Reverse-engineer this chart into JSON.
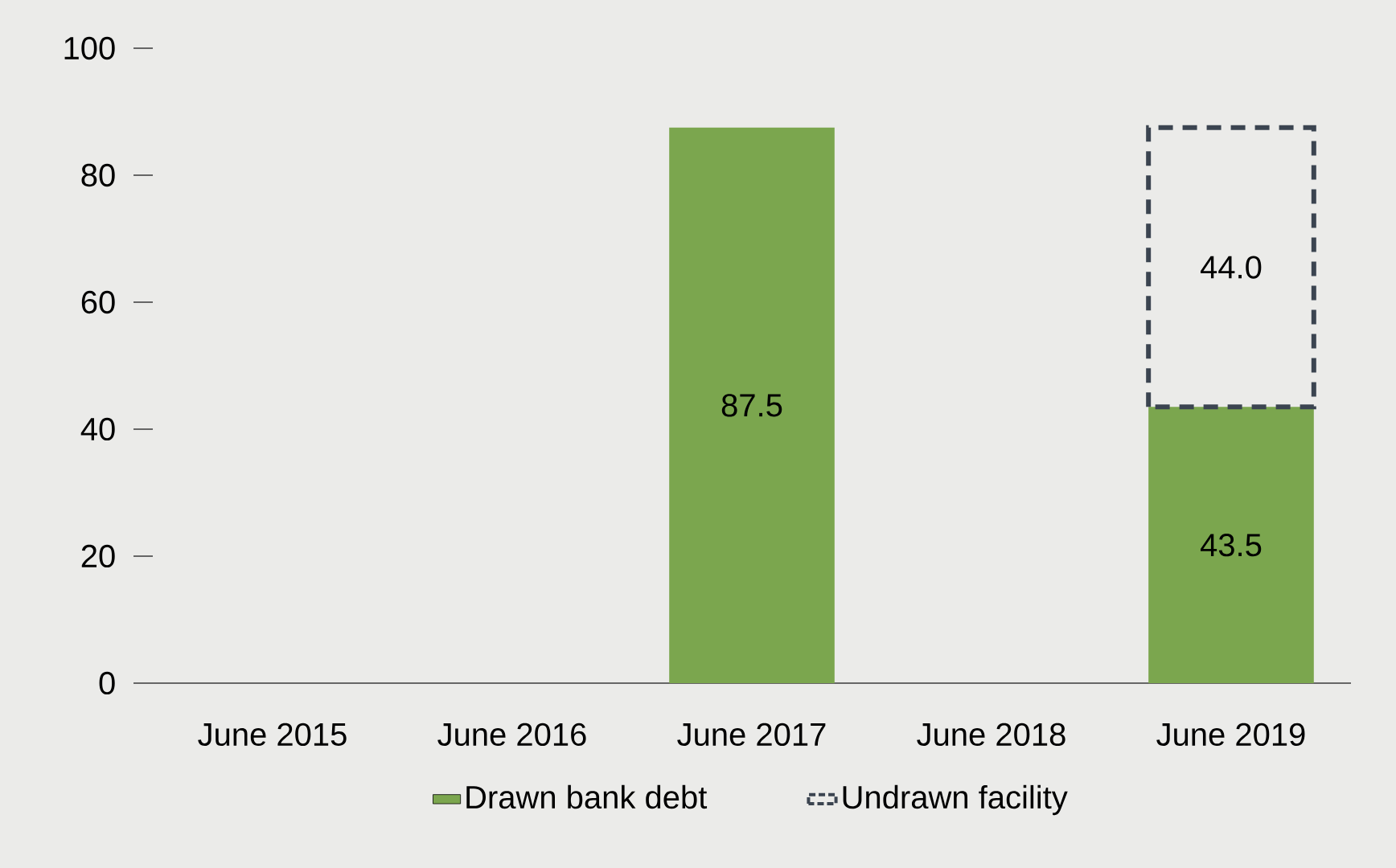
{
  "chart_data": {
    "type": "bar",
    "stacked": true,
    "categories": [
      "June 2015",
      "June 2016",
      "June 2017",
      "June 2018",
      "June 2019"
    ],
    "series": [
      {
        "name": "Drawn bank debt",
        "color": "#7ba64e",
        "line_style": "solid",
        "values": [
          null,
          null,
          87.5,
          null,
          43.5
        ],
        "value_labels": [
          null,
          null,
          "87.5",
          null,
          "43.5"
        ]
      },
      {
        "name": "Undrawn facility",
        "color": "#3b4450",
        "line_style": "dashed",
        "values": [
          null,
          null,
          null,
          null,
          44.0
        ],
        "value_labels": [
          null,
          null,
          null,
          null,
          "44.0"
        ]
      }
    ],
    "ylim": [
      0,
      100
    ],
    "yticks": [
      0,
      20,
      40,
      60,
      80,
      100
    ],
    "grid": false,
    "legend": "bottom"
  }
}
